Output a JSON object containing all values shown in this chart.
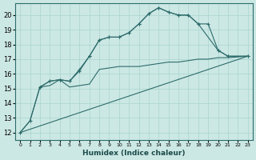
{
  "xlabel": "Humidex (Indice chaleur)",
  "background_color": "#cce8e4",
  "grid_color": "#a8d5cf",
  "line_color": "#2d6b6b",
  "xlim": [
    -0.5,
    23.5
  ],
  "ylim": [
    11.5,
    20.8
  ],
  "yticks": [
    12,
    13,
    14,
    15,
    16,
    17,
    18,
    19,
    20
  ],
  "xtick_labels": [
    "0",
    "1",
    "2",
    "3",
    "4",
    "5",
    "6",
    "7",
    "8",
    "9",
    "1011",
    "1213",
    "1415",
    "1617",
    "1819",
    "2021",
    "   23"
  ],
  "line1_x": [
    0,
    1,
    2,
    3,
    4,
    5,
    6,
    7,
    8,
    9,
    10,
    11,
    12,
    13,
    14,
    15,
    16,
    17,
    18,
    19,
    20,
    21,
    23
  ],
  "line1_y": [
    12.0,
    12.8,
    15.1,
    15.2,
    15.6,
    15.1,
    15.2,
    15.3,
    16.3,
    16.4,
    16.5,
    16.5,
    16.5,
    16.6,
    16.7,
    16.8,
    16.8,
    16.9,
    17.0,
    17.0,
    17.1,
    17.1,
    17.2
  ],
  "line2_x": [
    0,
    1,
    2,
    3,
    4,
    5,
    6,
    7,
    8,
    9,
    10,
    11,
    12,
    13,
    14,
    15,
    16,
    17,
    18,
    19,
    20,
    21,
    23
  ],
  "line2_y": [
    12.0,
    12.8,
    15.1,
    15.5,
    15.6,
    15.5,
    16.3,
    17.2,
    18.3,
    18.5,
    18.5,
    18.8,
    19.4,
    20.1,
    20.5,
    20.2,
    20.0,
    20.0,
    19.4,
    19.4,
    17.6,
    17.2,
    17.2
  ],
  "line3_x": [
    2,
    3,
    4,
    5,
    6,
    7,
    8,
    9,
    10,
    11,
    12,
    13,
    14,
    15,
    16,
    17,
    18,
    20,
    21,
    23
  ],
  "line3_y": [
    15.1,
    15.5,
    15.6,
    15.5,
    16.2,
    17.2,
    18.3,
    18.5,
    18.5,
    18.8,
    19.4,
    20.1,
    20.5,
    20.2,
    20.0,
    20.0,
    19.4,
    17.6,
    17.2,
    17.2
  ],
  "line4_x": [
    0,
    23
  ],
  "line4_y": [
    12.0,
    17.2
  ]
}
